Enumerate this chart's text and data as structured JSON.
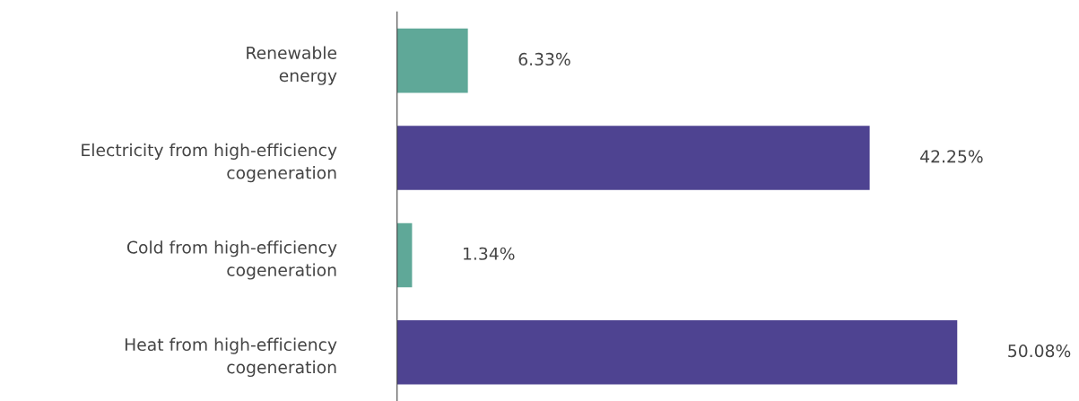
{
  "chart_data": {
    "type": "bar",
    "orientation": "horizontal",
    "categories": [
      "Renewable\nenergy",
      "Electricity from high-efficiency\ncogeneration",
      "Cold from high-efficiency\ncogeneration",
      "Heat from high-efficiency\ncogeneration"
    ],
    "values": [
      6.33,
      42.25,
      1.34,
      50.08
    ],
    "colors": [
      "#5fa898",
      "#4e4391",
      "#5fa898",
      "#4e4391"
    ],
    "value_labels": [
      "6.33%",
      "42.25%",
      "1.34%",
      "50.08%"
    ],
    "tick_labels": "y",
    "grid": false,
    "legend": false
  }
}
